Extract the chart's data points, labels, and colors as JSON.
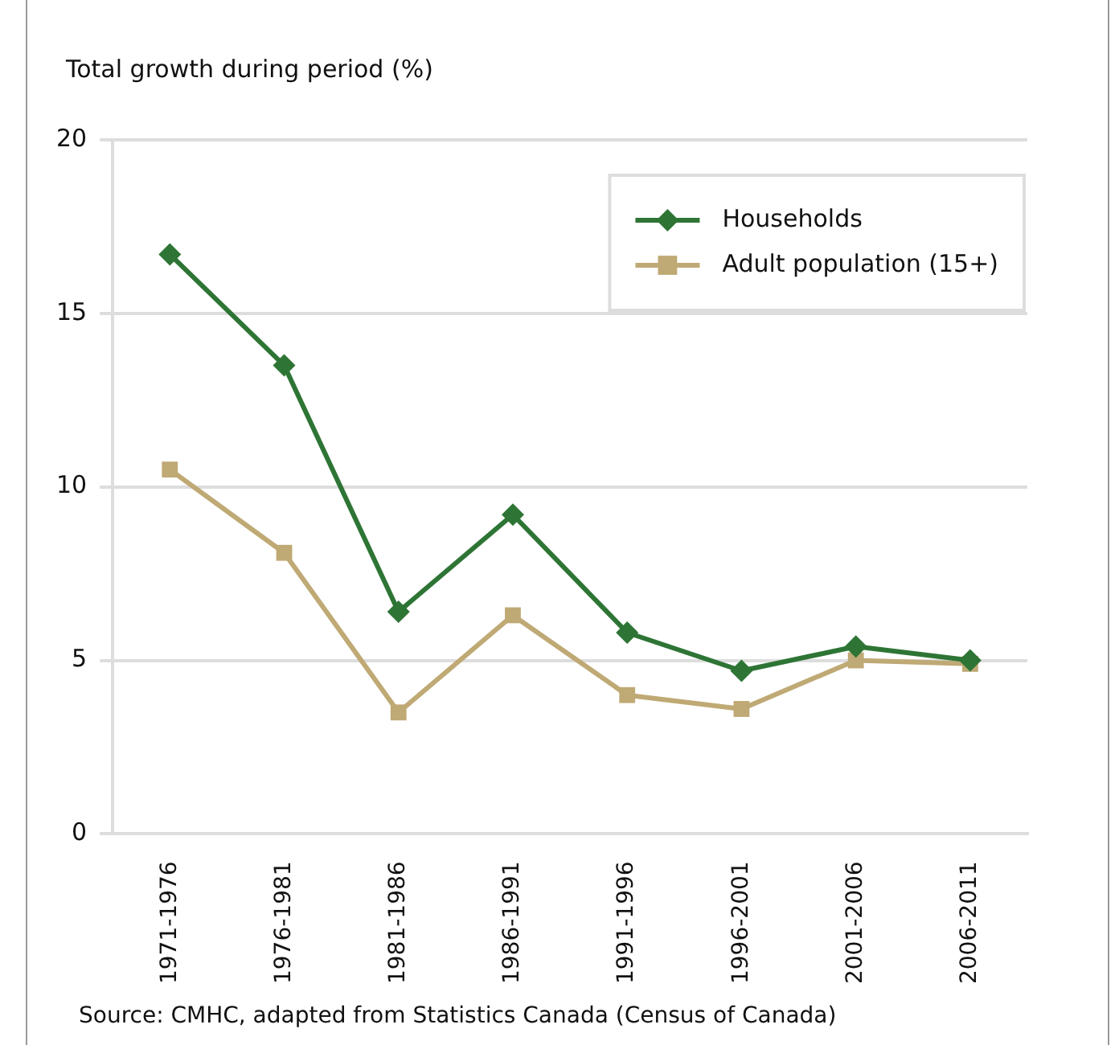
{
  "chart_data": {
    "type": "line",
    "ylabel": "Total growth during period (%)",
    "categories": [
      "1971-1976",
      "1976-1981",
      "1981-1986",
      "1986-1991",
      "1991-1996",
      "1996-2001",
      "2001-2006",
      "2006-2011"
    ],
    "series": [
      {
        "name": "Households",
        "color": "#2e7535",
        "marker": "diamond",
        "values": [
          16.7,
          13.5,
          6.4,
          9.2,
          5.8,
          4.7,
          5.4,
          5.0
        ]
      },
      {
        "name": "Adult population (15+)",
        "color": "#bfa974",
        "marker": "square",
        "values": [
          10.5,
          8.1,
          3.5,
          6.3,
          4.0,
          3.6,
          5.0,
          4.9
        ]
      }
    ],
    "ylim": [
      0,
      20
    ],
    "yticks": [
      0,
      5,
      10,
      15,
      20
    ],
    "grid": "y",
    "legend": "top right",
    "line_style": "solid",
    "annotations": [
      "Source: CMHC, adapted from Statistics Canada (Census of Canada)"
    ]
  }
}
